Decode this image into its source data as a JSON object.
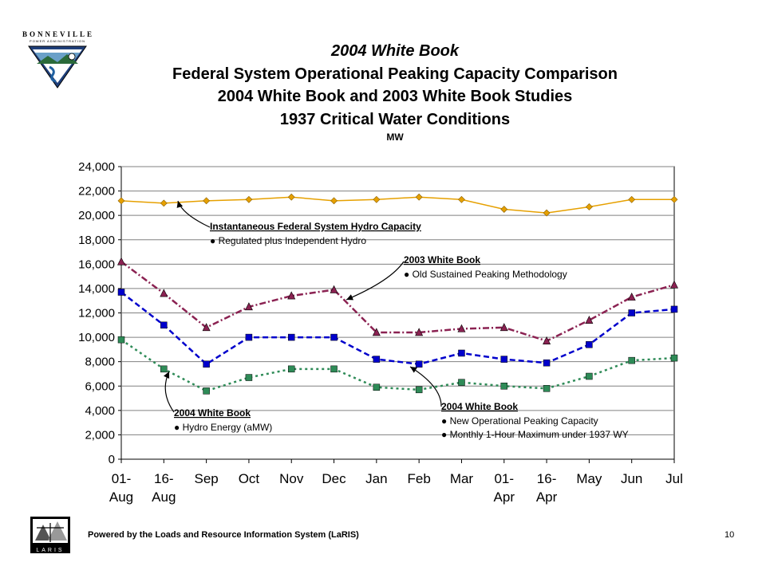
{
  "header": {
    "logo_word": "BONNEVILLE",
    "logo_sub": "POWER ADMINISTRATION",
    "title_lines": [
      "2004 White Book",
      "Federal System Operational Peaking Capacity Comparison",
      "2004 White Book and 2003 White Book Studies",
      "1937 Critical Water Conditions"
    ],
    "unit": "MW"
  },
  "footer": {
    "powered_by": "Powered by the Loads and Resource Information System (LaRIS)",
    "logo_text": "LARIS",
    "page_number": "10"
  },
  "colors": {
    "hydro_capacity": "#E6A000",
    "wb2003": "#8B2252",
    "wb2004_peaking": "#0000CC",
    "wb2004_energy": "#2E8B57",
    "plot_bg": "#FFFFFF",
    "grid": "#808080"
  },
  "chart_data": {
    "type": "line",
    "categories": [
      [
        "01-",
        "Aug"
      ],
      [
        "16-",
        "Aug"
      ],
      [
        "Sep"
      ],
      [
        "Oct"
      ],
      [
        "Nov"
      ],
      [
        "Dec"
      ],
      [
        "Jan"
      ],
      [
        "Feb"
      ],
      [
        "Mar"
      ],
      [
        "01-",
        "Apr"
      ],
      [
        "16-",
        "Apr"
      ],
      [
        "May"
      ],
      [
        "Jun"
      ],
      [
        "Jul"
      ]
    ],
    "ylim": [
      0,
      24000
    ],
    "yticks": [
      0,
      2000,
      4000,
      6000,
      8000,
      10000,
      12000,
      14000,
      16000,
      18000,
      20000,
      22000,
      24000
    ],
    "ytick_labels": [
      "0",
      "2,000",
      "4,000",
      "6,000",
      "8,000",
      "10,000",
      "12,000",
      "14,000",
      "16,000",
      "18,000",
      "20,000",
      "22,000",
      "24,000"
    ],
    "grid": true,
    "series": [
      {
        "key": "hydro_capacity",
        "marker": "diamond",
        "dash": "",
        "values": [
          21200,
          21000,
          21200,
          21300,
          21500,
          21200,
          21300,
          21500,
          21300,
          20500,
          20200,
          20700,
          21300,
          21300
        ]
      },
      {
        "key": "wb2003",
        "marker": "triangle",
        "dash": "8 3 2 3",
        "values": [
          16200,
          13600,
          10800,
          12500,
          13400,
          13900,
          10400,
          10400,
          10700,
          10800,
          9700,
          11400,
          13300,
          14300
        ]
      },
      {
        "key": "wb2004_peaking",
        "marker": "square",
        "dash": "7 4",
        "values": [
          13700,
          11000,
          7800,
          10000,
          10000,
          10000,
          8200,
          7800,
          8700,
          8200,
          7900,
          9400,
          12000,
          12300
        ]
      },
      {
        "key": "wb2004_energy",
        "marker": "square",
        "dash": "3 4",
        "values": [
          9800,
          7400,
          5600,
          6700,
          7400,
          7400,
          5900,
          5700,
          6300,
          6000,
          5800,
          6800,
          8100,
          8300
        ]
      }
    ],
    "annotations": [
      {
        "key": "hydro_capacity",
        "title": "Instantaneous Federal System Hydro Capacity",
        "bullets": [
          "Regulated plus Independent Hydro"
        ]
      },
      {
        "key": "wb2003",
        "title": "2003 White Book",
        "bullets": [
          "Old Sustained Peaking Methodology"
        ]
      },
      {
        "key": "wb2004_energy",
        "title": "2004 White Book",
        "bullets": [
          "Hydro Energy (aMW)"
        ]
      },
      {
        "key": "wb2004_peaking",
        "title": "2004 White Book",
        "bullets": [
          "New Operational Peaking Capacity",
          "Monthly 1-Hour Maximum under 1937 WY"
        ]
      }
    ]
  }
}
